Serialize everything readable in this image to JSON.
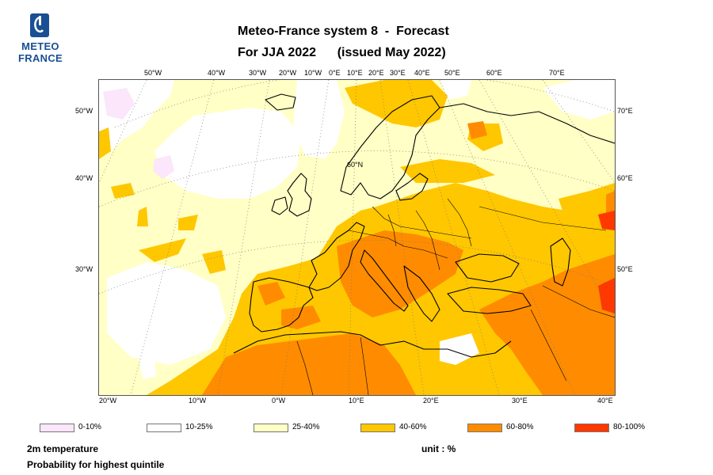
{
  "header": {
    "logo_line1": "METEO",
    "logo_line2": "FRANCE",
    "title_line1": "Meteo-France system 8  -  Forecast",
    "title_line2": "For JJA 2022      (issued May 2022)"
  },
  "map": {
    "top_ticks": [
      "50°W",
      "40°W",
      "30°W",
      "20°W",
      "10°W",
      "0°E",
      "10°E",
      "20°E",
      "30°E",
      "40°E",
      "50°E",
      "60°E",
      "70°E"
    ],
    "bottom_ticks": [
      "20°W",
      "10°W",
      "0°W",
      "10°E",
      "20°E",
      "30°E",
      "40°E"
    ],
    "left_ticks": [
      "50°W",
      "40°W",
      "30°W"
    ],
    "right_ticks": [
      "70°E",
      "60°E",
      "50°E"
    ],
    "inner_label": "60°N",
    "colors": {
      "c0_10": "#fbe6fb",
      "c10_25": "#ffffff",
      "c25_40": "#ffffc6",
      "c40_60": "#ffc700",
      "c60_80": "#ff8c00",
      "c80_100": "#ff3800",
      "coast": "#000000",
      "grid": "#777777"
    }
  },
  "legend": [
    {
      "label": "0-10%",
      "color": "#fbe6fb"
    },
    {
      "label": "10-25%",
      "color": "#ffffff"
    },
    {
      "label": "25-40%",
      "color": "#ffffc6"
    },
    {
      "label": "40-60%",
      "color": "#ffc700"
    },
    {
      "label": "60-80%",
      "color": "#ff8c00"
    },
    {
      "label": "80-100%",
      "color": "#ff3800"
    }
  ],
  "footer": {
    "variable": "2m temperature",
    "description": "Probability for highest quintile",
    "unit": "unit : %"
  }
}
